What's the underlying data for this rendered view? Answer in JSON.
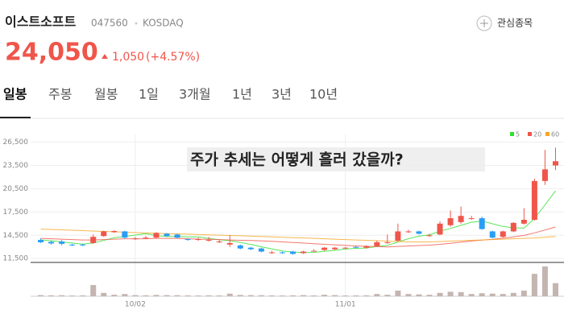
{
  "header": {
    "name": "이스트소프트",
    "code": "047560",
    "market": "KOSDAQ",
    "watch_button": "관심종목",
    "price": "24,050",
    "change": "1,050",
    "change_rate": "(+4.57%)"
  },
  "tabs": [
    "일봉",
    "주봉",
    "월봉",
    "1일",
    "3개월",
    "1년",
    "3년",
    "10년"
  ],
  "chart_data": {
    "type": "candlestick",
    "annotation": "주가 추세는 어떻게 흘러 갔을까?",
    "categories": [
      null,
      null,
      null,
      null,
      null,
      null,
      null,
      null,
      null,
      "10/02",
      null,
      null,
      null,
      null,
      null,
      null,
      null,
      null,
      null,
      null,
      null,
      null,
      null,
      null,
      null,
      null,
      null,
      null,
      null,
      "11/01",
      null,
      null,
      null,
      null,
      null,
      null,
      null,
      null,
      null,
      null,
      null,
      null,
      null,
      null,
      null,
      null,
      null,
      null,
      null,
      null
    ],
    "open": [
      13900,
      13650,
      13700,
      13300,
      13300,
      13500,
      14400,
      14900,
      15000,
      14100,
      14200,
      14200,
      14700,
      14600,
      14000,
      14000,
      13900,
      13700,
      13300,
      13200,
      12900,
      12800,
      12300,
      12300,
      12400,
      12200,
      12500,
      12600,
      12700,
      12900,
      13000,
      12900,
      13100,
      13600,
      13800,
      15000,
      15000,
      14500,
      14600,
      15800,
      16200,
      16700,
      16700,
      15000,
      14300,
      15000,
      16000,
      16500,
      21500,
      23500
    ],
    "high": [
      14100,
      13800,
      13900,
      13400,
      13400,
      14600,
      15100,
      15150,
      15100,
      14300,
      14400,
      14900,
      14800,
      14700,
      14100,
      14200,
      14300,
      13900,
      14500,
      13300,
      13000,
      12900,
      12500,
      12400,
      12500,
      12500,
      12700,
      13000,
      13000,
      13000,
      13100,
      13200,
      13800,
      14600,
      16000,
      15200,
      15100,
      14700,
      16300,
      17700,
      18200,
      17000,
      16900,
      15100,
      15100,
      16200,
      18000,
      21800,
      25500,
      25800
    ],
    "low": [
      13500,
      13300,
      13200,
      13100,
      13100,
      13400,
      14300,
      14800,
      14100,
      13900,
      14000,
      14100,
      14300,
      14100,
      13800,
      13800,
      13700,
      13500,
      13000,
      12700,
      12600,
      12300,
      12100,
      12100,
      12000,
      12100,
      12400,
      12500,
      12600,
      12800,
      12800,
      12800,
      13000,
      13400,
      13700,
      14800,
      14600,
      14300,
      14500,
      15600,
      16000,
      16500,
      15200,
      14100,
      14200,
      14900,
      15900,
      16400,
      21000,
      22900
    ],
    "close": [
      13600,
      13450,
      13400,
      13200,
      13200,
      14300,
      15000,
      15050,
      14200,
      14100,
      14200,
      14800,
      14400,
      14200,
      13900,
      14000,
      13900,
      13700,
      13500,
      12800,
      12700,
      12400,
      12300,
      12200,
      12100,
      12400,
      12500,
      12900,
      12900,
      12900,
      12900,
      13100,
      13600,
      13600,
      15000,
      15000,
      14700,
      14500,
      16000,
      16700,
      17000,
      16700,
      15300,
      14200,
      15000,
      16100,
      16500,
      21500,
      23000,
      24050
    ],
    "volume": [
      30000,
      25000,
      28000,
      20000,
      22000,
      300000,
      90000,
      40000,
      60000,
      30000,
      25000,
      35000,
      30000,
      28000,
      22000,
      20000,
      25000,
      22000,
      70000,
      35000,
      30000,
      28000,
      22000,
      20000,
      25000,
      30000,
      22000,
      40000,
      30000,
      20000,
      22000,
      25000,
      60000,
      40000,
      150000,
      60000,
      50000,
      40000,
      90000,
      120000,
      110000,
      60000,
      80000,
      70000,
      60000,
      90000,
      150000,
      600000,
      800000,
      350000
    ],
    "series": [
      {
        "name": "5",
        "color": "#2ee02e",
        "values": [
          13900,
          13800,
          13650,
          13500,
          13370,
          13510,
          13830,
          14190,
          14350,
          14530,
          14710,
          14470,
          14340,
          14340,
          14300,
          14300,
          14080,
          13940,
          13800,
          13580,
          13320,
          13020,
          12740,
          12480,
          12340,
          12280,
          12300,
          12420,
          12560,
          12720,
          12820,
          12860,
          13040,
          13200,
          13640,
          14060,
          14380,
          14560,
          15040,
          15380,
          15780,
          16180,
          16340,
          15980,
          15640,
          15460,
          15420,
          16680,
          18420,
          20230
        ]
      },
      {
        "name": "20",
        "color": "#f0554a",
        "values": [
          14100,
          14050,
          14000,
          13950,
          13900,
          13900,
          13950,
          14000,
          14050,
          14050,
          14050,
          14100,
          14100,
          14100,
          14050,
          14000,
          13980,
          13950,
          13900,
          13850,
          13820,
          13780,
          13720,
          13650,
          13570,
          13500,
          13420,
          13340,
          13270,
          13200,
          13130,
          13080,
          13040,
          13000,
          13060,
          13120,
          13180,
          13230,
          13340,
          13470,
          13610,
          13760,
          13880,
          13980,
          14120,
          14290,
          14490,
          14810,
          15180,
          15570
        ]
      },
      {
        "name": "60",
        "color": "#f5a623",
        "values": [
          15300,
          15250,
          15200,
          15150,
          15100,
          15050,
          15000,
          14950,
          14900,
          14850,
          14800,
          14760,
          14720,
          14680,
          14640,
          14600,
          14560,
          14520,
          14480,
          14440,
          14400,
          14350,
          14300,
          14250,
          14200,
          14150,
          14100,
          14050,
          14000,
          13950,
          13900,
          13850,
          13800,
          13750,
          13700,
          13650,
          13650,
          13650,
          13700,
          13750,
          13800,
          13850,
          13900,
          13950,
          14000,
          14050,
          14100,
          14150,
          14250,
          14350
        ]
      }
    ],
    "up_color": "#f0554a",
    "down_color": "#2a9df4",
    "volume_color": "#c4b5b0",
    "ylim": [
      11000,
      27500
    ],
    "yticks": [
      {
        "value": 11500,
        "label": "11,500"
      },
      {
        "value": 14500,
        "label": "14,500"
      },
      {
        "value": 17500,
        "label": "17,500"
      },
      {
        "value": 20500,
        "label": "20,500"
      },
      {
        "value": 23500,
        "label": "23,500"
      },
      {
        "value": 26500,
        "label": "26,500"
      }
    ],
    "vlim": [
      0,
      820000
    ],
    "grid": true
  }
}
